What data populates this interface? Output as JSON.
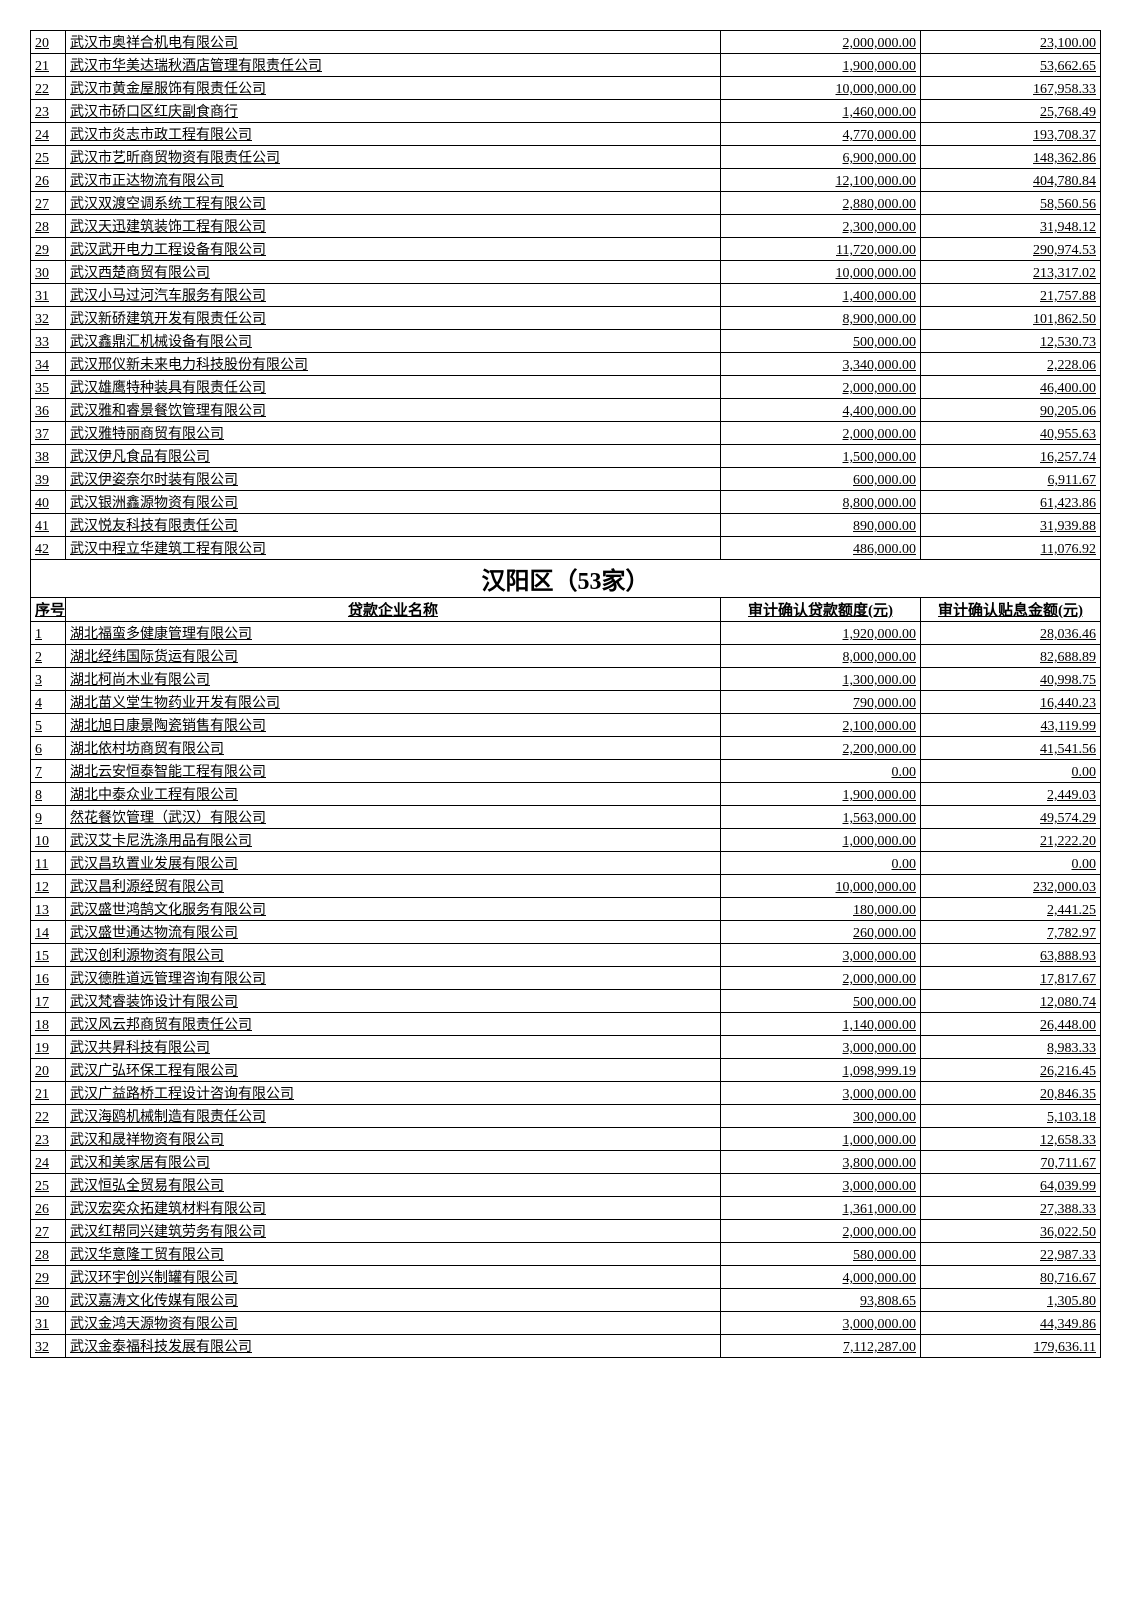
{
  "top_rows": [
    {
      "idx": "20",
      "name": "武汉市奥祥合机电有限公司",
      "a": "2,000,000.00",
      "b": "23,100.00"
    },
    {
      "idx": "21",
      "name": "武汉市华美达瑞秋酒店管理有限责任公司",
      "a": "1,900,000.00",
      "b": "53,662.65"
    },
    {
      "idx": "22",
      "name": "武汉市黄金屋服饰有限责任公司",
      "a": "10,000,000.00",
      "b": "167,958.33"
    },
    {
      "idx": "23",
      "name": "武汉市硚口区红庆副食商行",
      "a": "1,460,000.00",
      "b": "25,768.49"
    },
    {
      "idx": "24",
      "name": "武汉市炎志市政工程有限公司",
      "a": "4,770,000.00",
      "b": "193,708.37"
    },
    {
      "idx": "25",
      "name": "武汉市艺昕商贸物资有限责任公司",
      "a": "6,900,000.00",
      "b": "148,362.86"
    },
    {
      "idx": "26",
      "name": "武汉市正达物流有限公司",
      "a": "12,100,000.00",
      "b": "404,780.84"
    },
    {
      "idx": "27",
      "name": "武汉双渡空调系统工程有限公司",
      "a": "2,880,000.00",
      "b": "58,560.56"
    },
    {
      "idx": "28",
      "name": "武汉天迅建筑装饰工程有限公司",
      "a": "2,300,000.00",
      "b": "31,948.12"
    },
    {
      "idx": "29",
      "name": "武汉武开电力工程设备有限公司",
      "a": "11,720,000.00",
      "b": "290,974.53"
    },
    {
      "idx": "30",
      "name": "武汉西楚商贸有限公司",
      "a": "10,000,000.00",
      "b": "213,317.02"
    },
    {
      "idx": "31",
      "name": "武汉小马过河汽车服务有限公司",
      "a": "1,400,000.00",
      "b": "21,757.88"
    },
    {
      "idx": "32",
      "name": "武汉新硚建筑开发有限责任公司",
      "a": "8,900,000.00",
      "b": "101,862.50"
    },
    {
      "idx": "33",
      "name": "武汉鑫鼎汇机械设备有限公司",
      "a": "500,000.00",
      "b": "12,530.73"
    },
    {
      "idx": "34",
      "name": "武汉邢仪新未来电力科技股份有限公司",
      "a": "3,340,000.00",
      "b": "2,228.06"
    },
    {
      "idx": "35",
      "name": "武汉雄鹰特种装具有限责任公司",
      "a": "2,000,000.00",
      "b": "46,400.00"
    },
    {
      "idx": "36",
      "name": "武汉雅和睿景餐饮管理有限公司",
      "a": "4,400,000.00",
      "b": "90,205.06"
    },
    {
      "idx": "37",
      "name": "武汉雅特丽商贸有限公司",
      "a": "2,000,000.00",
      "b": "40,955.63"
    },
    {
      "idx": "38",
      "name": "武汉伊凡食品有限公司",
      "a": "1,500,000.00",
      "b": "16,257.74"
    },
    {
      "idx": "39",
      "name": "武汉伊姿奈尔时装有限公司",
      "a": "600,000.00",
      "b": "6,911.67"
    },
    {
      "idx": "40",
      "name": "武汉银洲鑫源物资有限公司",
      "a": "8,800,000.00",
      "b": "61,423.86"
    },
    {
      "idx": "41",
      "name": "武汉悦友科技有限责任公司",
      "a": "890,000.00",
      "b": "31,939.88"
    },
    {
      "idx": "42",
      "name": "武汉中程立华建筑工程有限公司",
      "a": "486,000.00",
      "b": "11,076.92"
    }
  ],
  "section_title": "汉阳区（53家）",
  "header": {
    "idx": "序号",
    "name": "贷款企业名称",
    "a": "审计确认贷款额度(元)",
    "b": "审计确认贴息金额(元)"
  },
  "bottom_rows": [
    {
      "idx": "1",
      "name": "湖北福蛮多健康管理有限公司",
      "a": "1,920,000.00",
      "b": "28,036.46"
    },
    {
      "idx": "2",
      "name": "湖北经纬国际货运有限公司",
      "a": "8,000,000.00",
      "b": "82,688.89"
    },
    {
      "idx": "3",
      "name": "湖北柯尚木业有限公司",
      "a": "1,300,000.00",
      "b": "40,998.75"
    },
    {
      "idx": "4",
      "name": "湖北苗义堂生物药业开发有限公司",
      "a": "790,000.00",
      "b": "16,440.23"
    },
    {
      "idx": "5",
      "name": "湖北旭日康景陶瓷销售有限公司",
      "a": "2,100,000.00",
      "b": "43,119.99"
    },
    {
      "idx": "6",
      "name": "湖北依村坊商贸有限公司",
      "a": "2,200,000.00",
      "b": "41,541.56"
    },
    {
      "idx": "7",
      "name": "湖北云安恒泰智能工程有限公司",
      "a": "0.00",
      "b": "0.00"
    },
    {
      "idx": "8",
      "name": "湖北中泰众业工程有限公司",
      "a": "1,900,000.00",
      "b": "2,449.03"
    },
    {
      "idx": "9",
      "name": "然花餐饮管理（武汉）有限公司",
      "a": "1,563,000.00",
      "b": "49,574.29"
    },
    {
      "idx": "10",
      "name": "武汉艾卡尼洗涤用品有限公司",
      "a": "1,000,000.00",
      "b": "21,222.20"
    },
    {
      "idx": "11",
      "name": "武汉昌玖置业发展有限公司",
      "a": "0.00",
      "b": "0.00"
    },
    {
      "idx": "12",
      "name": "武汉昌利源经贸有限公司",
      "a": "10,000,000.00",
      "b": "232,000.03"
    },
    {
      "idx": "13",
      "name": "武汉盛世鸿鹄文化服务有限公司",
      "a": "180,000.00",
      "b": "2,441.25"
    },
    {
      "idx": "14",
      "name": "武汉盛世通达物流有限公司",
      "a": "260,000.00",
      "b": "7,782.97"
    },
    {
      "idx": "15",
      "name": "武汉创利源物资有限公司",
      "a": "3,000,000.00",
      "b": "63,888.93"
    },
    {
      "idx": "16",
      "name": "武汉德胜道远管理咨询有限公司",
      "a": "2,000,000.00",
      "b": "17,817.67"
    },
    {
      "idx": "17",
      "name": "武汉梵睿装饰设计有限公司",
      "a": "500,000.00",
      "b": "12,080.74"
    },
    {
      "idx": "18",
      "name": "武汉风云邦商贸有限责任公司",
      "a": "1,140,000.00",
      "b": "26,448.00"
    },
    {
      "idx": "19",
      "name": "武汉共昇科技有限公司",
      "a": "3,000,000.00",
      "b": "8,983.33"
    },
    {
      "idx": "20",
      "name": "武汉广弘环保工程有限公司",
      "a": "1,098,999.19",
      "b": "26,216.45"
    },
    {
      "idx": "21",
      "name": "武汉广益路桥工程设计咨询有限公司",
      "a": "3,000,000.00",
      "b": "20,846.35"
    },
    {
      "idx": "22",
      "name": "武汉海鸥机械制造有限责任公司",
      "a": "300,000.00",
      "b": "5,103.18"
    },
    {
      "idx": "23",
      "name": "武汉和晟祥物资有限公司",
      "a": "1,000,000.00",
      "b": "12,658.33"
    },
    {
      "idx": "24",
      "name": "武汉和美家居有限公司",
      "a": "3,800,000.00",
      "b": "70,711.67"
    },
    {
      "idx": "25",
      "name": "武汉恒弘全贸易有限公司",
      "a": "3,000,000.00",
      "b": "64,039.99"
    },
    {
      "idx": "26",
      "name": "武汉宏奕众拓建筑材料有限公司",
      "a": "1,361,000.00",
      "b": "27,388.33"
    },
    {
      "idx": "27",
      "name": "武汉红帮同兴建筑劳务有限公司",
      "a": "2,000,000.00",
      "b": "36,022.50"
    },
    {
      "idx": "28",
      "name": "武汉华意隆工贸有限公司",
      "a": "580,000.00",
      "b": "22,987.33"
    },
    {
      "idx": "29",
      "name": "武汉环宇创兴制罐有限公司",
      "a": "4,000,000.00",
      "b": "80,716.67"
    },
    {
      "idx": "30",
      "name": "武汉嘉涛文化传媒有限公司",
      "a": "93,808.65",
      "b": "1,305.80"
    },
    {
      "idx": "31",
      "name": "武汉金鸿天源物资有限公司",
      "a": "3,000,000.00",
      "b": "44,349.86"
    },
    {
      "idx": "32",
      "name": "武汉金泰福科技发展有限公司",
      "a": "7,112,287.00",
      "b": "179,636.11"
    }
  ]
}
